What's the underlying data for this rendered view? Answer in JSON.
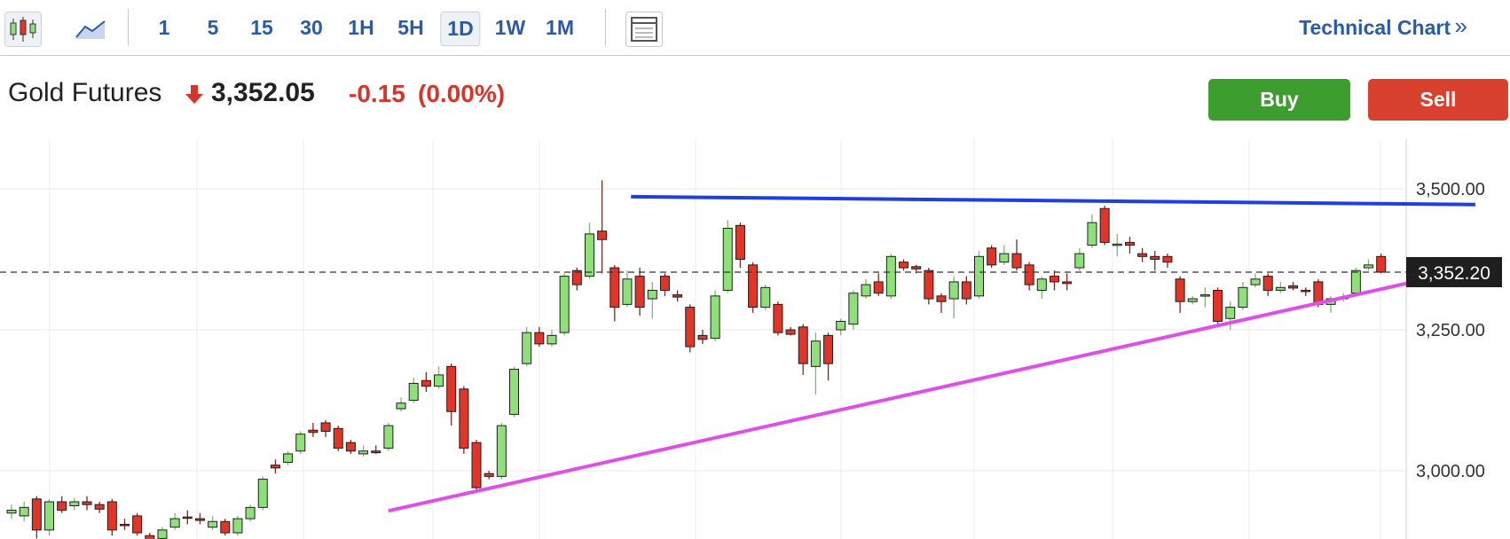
{
  "toolbar": {
    "intervals": [
      "1",
      "5",
      "15",
      "30",
      "1H",
      "5H",
      "1D",
      "1W",
      "1M"
    ],
    "active": "1D",
    "link": "Technical Chart",
    "link_arrow": "»"
  },
  "header": {
    "name": "Gold Futures",
    "price": "3,352.05",
    "change": "-0.15",
    "change_pct": "(0.00%)"
  },
  "buttons": [
    "Buy",
    "Sell"
  ],
  "chart_data": {
    "type": "candlestick",
    "up_color": "#8fe07b",
    "down_color": "#e0362a",
    "xlim": [
      -0.92,
      111
    ],
    "ylim": [
      2879,
      3588
    ],
    "yticks": [
      {
        "value": 3000,
        "label": "3,000.00"
      },
      {
        "value": 3250,
        "label": "3,250.00"
      },
      {
        "value": 3500,
        "label": "3,500.00"
      }
    ],
    "grid": true,
    "last_price": {
      "value": 3352.2,
      "label": "3,352.20"
    },
    "open": [
      2925,
      2920,
      2950,
      2895,
      2945,
      2938,
      2945,
      2940,
      2945,
      2905,
      2920,
      2885,
      2880,
      2900,
      2918,
      2915,
      2900,
      2910,
      2890,
      2915,
      2935,
      3010,
      3015,
      3035,
      3072,
      3085,
      3075,
      3050,
      3030,
      3035,
      3040,
      3110,
      3125,
      3160,
      3150,
      3185,
      3145,
      3050,
      2995,
      2990,
      3100,
      3190,
      3245,
      3225,
      3245,
      3355,
      3345,
      3425,
      3360,
      3295,
      3345,
      3305,
      3345,
      3312,
      3290,
      3240,
      3235,
      3320,
      3435,
      3365,
      3290,
      3295,
      3250,
      3255,
      3185,
      3240,
      3250,
      3260,
      3310,
      3335,
      3310,
      3370,
      3362,
      3355,
      3310,
      3305,
      3335,
      3310,
      3395,
      3370,
      3385,
      3365,
      3320,
      3345,
      3335,
      3360,
      3400,
      3465,
      3400,
      3405,
      3385,
      3380,
      3380,
      3340,
      3300,
      3310,
      3320,
      3270,
      3290,
      3330,
      3345,
      3320,
      3328,
      3320,
      3335,
      3295,
      3305,
      3315,
      3360,
      3380
    ],
    "high": [
      2940,
      2945,
      2955,
      2950,
      2955,
      2952,
      2955,
      2945,
      2950,
      2915,
      2925,
      2890,
      2900,
      2925,
      2930,
      2925,
      2920,
      2915,
      2920,
      2940,
      2990,
      3020,
      3035,
      3070,
      3085,
      3090,
      3080,
      3055,
      3045,
      3045,
      3085,
      3130,
      3165,
      3175,
      3185,
      3190,
      3150,
      3055,
      3000,
      3085,
      3185,
      3255,
      3255,
      3250,
      3350,
      3360,
      3440,
      3515,
      3365,
      3355,
      3360,
      3335,
      3350,
      3320,
      3295,
      3250,
      3320,
      3445,
      3440,
      3370,
      3330,
      3300,
      3255,
      3260,
      3245,
      3245,
      3270,
      3320,
      3340,
      3350,
      3385,
      3375,
      3365,
      3360,
      3315,
      3345,
      3345,
      3390,
      3400,
      3400,
      3410,
      3370,
      3345,
      3355,
      3350,
      3395,
      3455,
      3470,
      3420,
      3415,
      3395,
      3390,
      3385,
      3345,
      3310,
      3325,
      3325,
      3300,
      3335,
      3350,
      3350,
      3335,
      3335,
      3325,
      3340,
      3310,
      3315,
      3360,
      3375,
      3385
    ],
    "low": [
      2915,
      2910,
      2880,
      2885,
      2925,
      2930,
      2930,
      2925,
      2885,
      2895,
      2885,
      2872,
      2875,
      2895,
      2905,
      2905,
      2895,
      2885,
      2885,
      2910,
      2930,
      2995,
      3010,
      3030,
      3060,
      3060,
      3035,
      3030,
      3025,
      3030,
      3035,
      3105,
      3120,
      3140,
      3145,
      3080,
      3030,
      2965,
      2985,
      2985,
      3095,
      3185,
      3220,
      3220,
      3240,
      3320,
      3340,
      3350,
      3265,
      3290,
      3275,
      3270,
      3310,
      3300,
      3210,
      3225,
      3230,
      3315,
      3360,
      3280,
      3285,
      3240,
      3240,
      3170,
      3135,
      3160,
      3240,
      3250,
      3305,
      3310,
      3305,
      3355,
      3350,
      3295,
      3280,
      3270,
      3295,
      3305,
      3360,
      3365,
      3355,
      3320,
      3305,
      3320,
      3320,
      3355,
      3395,
      3400,
      3380,
      3385,
      3370,
      3355,
      3360,
      3280,
      3295,
      3290,
      3260,
      3250,
      3285,
      3325,
      3310,
      3315,
      3320,
      3310,
      3290,
      3280,
      3300,
      3310,
      3355,
      3350
    ],
    "close": [
      2930,
      2935,
      2895,
      2945,
      2930,
      2945,
      2940,
      2932,
      2895,
      2903,
      2890,
      2875,
      2895,
      2915,
      2916,
      2912,
      2910,
      2890,
      2915,
      2935,
      2985,
      3005,
      3030,
      3065,
      3068,
      3070,
      3040,
      3035,
      3035,
      3032,
      3080,
      3120,
      3155,
      3150,
      3170,
      3105,
      3040,
      2970,
      2990,
      3080,
      3180,
      3245,
      3225,
      3240,
      3345,
      3330,
      3420,
      3410,
      3290,
      3340,
      3290,
      3320,
      3320,
      3308,
      3220,
      3233,
      3310,
      3430,
      3375,
      3290,
      3325,
      3245,
      3242,
      3190,
      3230,
      3190,
      3265,
      3315,
      3330,
      3315,
      3380,
      3360,
      3358,
      3305,
      3300,
      3335,
      3305,
      3380,
      3365,
      3385,
      3360,
      3330,
      3340,
      3335,
      3332,
      3385,
      3440,
      3405,
      3402,
      3400,
      3380,
      3375,
      3370,
      3300,
      3305,
      3312,
      3265,
      3290,
      3325,
      3340,
      3320,
      3325,
      3324,
      3318,
      3295,
      3305,
      3308,
      3355,
      3365,
      3352.2
    ],
    "trendlines": [
      {
        "color": "#1f3fe0",
        "start": [
          49.3,
          3486
        ],
        "end": [
          116.5,
          3472
        ]
      },
      {
        "color": "#e04ee8",
        "start": [
          30.0,
          2929
        ],
        "end": [
          115.6,
          3355
        ]
      }
    ]
  }
}
